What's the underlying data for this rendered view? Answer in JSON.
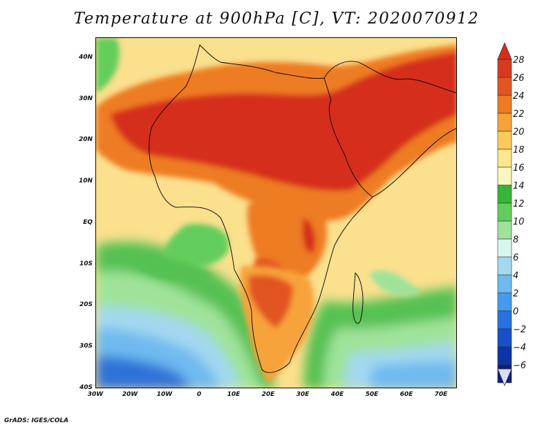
{
  "title": "Temperature at 900hPa [C], VT: 2020070912",
  "credit": "GrADS: IGES/COLA",
  "lat_labels": [
    "40N",
    "30N",
    "20N",
    "10N",
    "EQ",
    "10S",
    "20S",
    "30S",
    "40S"
  ],
  "lon_labels": [
    "30W",
    "20W",
    "10W",
    "0",
    "10E",
    "20E",
    "30E",
    "40E",
    "50E",
    "60E",
    "70E"
  ],
  "extent": {
    "lon_min": -30,
    "lon_max": 75,
    "lat_min": -40,
    "lat_max": 45
  },
  "colorbar": {
    "levels": [
      "28",
      "26",
      "24",
      "22",
      "20",
      "18",
      "16",
      "14",
      "12",
      "10",
      "8",
      "6",
      "4",
      "2",
      "0",
      "−2",
      "−4",
      "−6"
    ],
    "colors": [
      "#d93a1f",
      "#e25522",
      "#ee7b22",
      "#f7a33a",
      "#fbcb5c",
      "#fbe88c",
      "#f7f7bf",
      "#36b53a",
      "#63cd5c",
      "#9fe39a",
      "#d8f5f0",
      "#a3d8ef",
      "#6ebaf0",
      "#449bec",
      "#2672e2",
      "#1850c8",
      "#0c35a5",
      "#0b1f7a"
    ]
  },
  "field_regions": [
    {
      "name": "background-warm",
      "color": "#fbe3a0"
    },
    {
      "name": "cool-south",
      "color": "#2a6fe0"
    },
    {
      "name": "hot-core",
      "color": "#d62e1a"
    }
  ]
}
